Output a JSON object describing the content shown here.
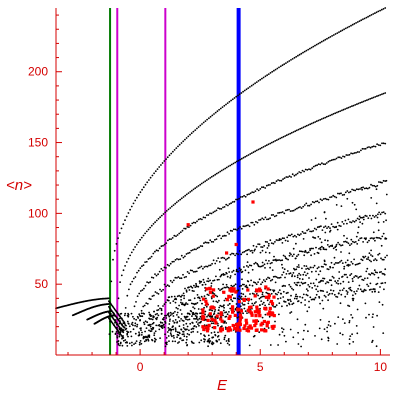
{
  "chart_data": {
    "type": "scatter",
    "xlabel": "E",
    "ylabel": "<n>",
    "xlim": [
      -3.5,
      10.4
    ],
    "ylim": [
      0,
      245
    ],
    "x_ticks": [
      0,
      5,
      10
    ],
    "x_tick_labels": [
      "0",
      "5",
      "10"
    ],
    "y_ticks": [
      50,
      100,
      150,
      200
    ],
    "y_tick_labels": [
      "50",
      "100",
      "150",
      "200"
    ],
    "grid": false,
    "legend": "none",
    "colors": {
      "axis": "#d40000",
      "points": "#000000",
      "highlight": "#ff0000",
      "line_green": "#007a00",
      "line_magenta": "#cc00cc",
      "line_blue": "#0000ff"
    },
    "vertical_lines": [
      {
        "x": -1.25,
        "color": "#007a00",
        "width": 2
      },
      {
        "x": -0.95,
        "color": "#cc00cc",
        "width": 2
      },
      {
        "x": 1.05,
        "color": "#cc00cc",
        "width": 2
      },
      {
        "x": 4.1,
        "color": "#0000ff",
        "width": 4
      }
    ],
    "curve_families": [
      {
        "start": [
          -1.2,
          52
        ],
        "end": [
          10.2,
          245
        ]
      },
      {
        "start": [
          -0.9,
          40
        ],
        "end": [
          10.2,
          185
        ]
      },
      {
        "start": [
          -0.6,
          33
        ],
        "end": [
          10.2,
          150
        ]
      },
      {
        "start": [
          -0.3,
          28
        ],
        "end": [
          10.2,
          122
        ]
      },
      {
        "start": [
          0.0,
          24
        ],
        "end": [
          10.2,
          100
        ]
      },
      {
        "start": [
          0.4,
          20
        ],
        "end": [
          10.2,
          84
        ]
      },
      {
        "start": [
          0.8,
          17
        ],
        "end": [
          10.2,
          70
        ]
      },
      {
        "start": [
          1.2,
          15
        ],
        "end": [
          10.2,
          58
        ]
      },
      {
        "start": [
          1.6,
          13
        ],
        "end": [
          10.2,
          48
        ]
      }
    ],
    "left_branch_curves": [
      {
        "from": [
          -3.5,
          33
        ],
        "to": [
          -1.3,
          40
        ]
      },
      {
        "from": [
          -2.8,
          28
        ],
        "to": [
          -1.3,
          36
        ]
      },
      {
        "from": [
          -2.2,
          25
        ],
        "to": [
          -1.2,
          31
        ]
      },
      {
        "from": [
          -1.9,
          22
        ],
        "to": [
          -1.1,
          28
        ]
      }
    ],
    "highlight_cluster": {
      "x_range": [
        2.6,
        5.6
      ],
      "y_range": [
        17,
        48
      ]
    }
  }
}
